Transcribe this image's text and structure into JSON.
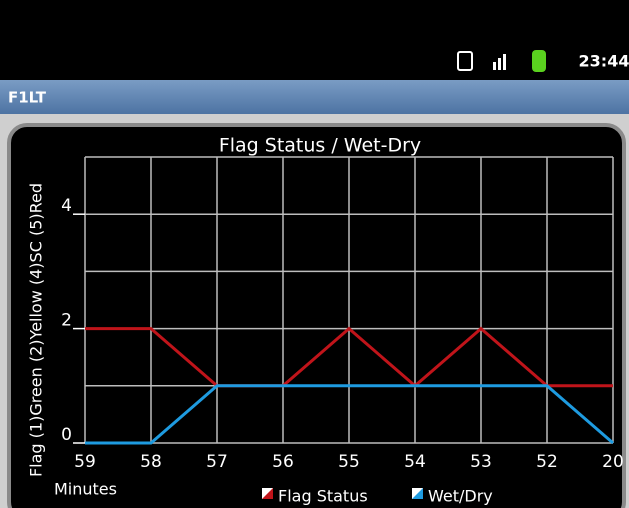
{
  "status_bar": {
    "time": "23:44"
  },
  "app_bar": {
    "title": "F1LT"
  },
  "chart_data": {
    "type": "line",
    "title": "Flag Status / Wet-Dry",
    "x_label": "Minutes",
    "y_label": "Flag (1)Green (2)Yellow (4)SC (5)Red",
    "categories": [
      "59",
      "58",
      "57",
      "56",
      "55",
      "54",
      "53",
      "52",
      "20"
    ],
    "series": [
      {
        "name": "Flag Status",
        "color": "#c0141a",
        "values": [
          2,
          2,
          1,
          1,
          2,
          1,
          2,
          1,
          1
        ]
      },
      {
        "name": "Wet/Dry",
        "color": "#1e9be0",
        "values": [
          0,
          0,
          1,
          1,
          1,
          1,
          1,
          1,
          0
        ]
      }
    ],
    "ylim": [
      0,
      5
    ],
    "yticks": [
      0,
      2,
      4
    ],
    "grid_y": [
      0,
      1,
      2,
      3,
      4,
      5
    ],
    "grid": true
  }
}
